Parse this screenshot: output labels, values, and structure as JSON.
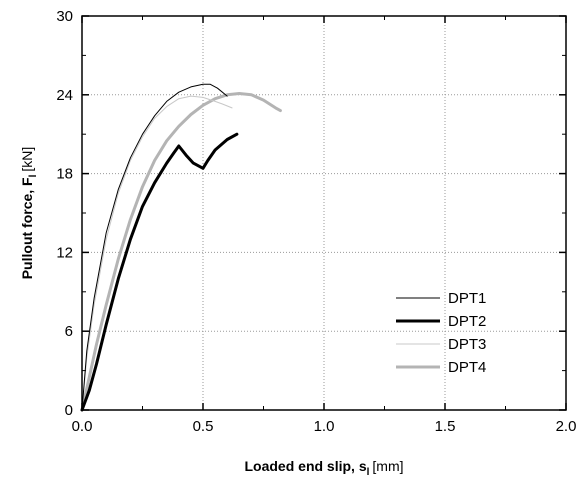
{
  "chart_data": {
    "type": "line",
    "xlabel": "Loaded end slip, s",
    "xlabel_sub": "l",
    "xlabel_unit": "[mm]",
    "ylabel": "Pullout force, F",
    "ylabel_sub": "l",
    "ylabel_unit": "[kN]",
    "xlim": [
      0.0,
      2.0
    ],
    "ylim": [
      0,
      30
    ],
    "xticks": [
      "0.0",
      "0.5",
      "1.0",
      "1.5",
      "2.0"
    ],
    "yticks": [
      "0",
      "6",
      "12",
      "18",
      "24",
      "30"
    ],
    "xtick_values": [
      0.0,
      0.5,
      1.0,
      1.5,
      2.0
    ],
    "ytick_values": [
      0,
      6,
      12,
      18,
      24,
      30
    ],
    "grid": true,
    "legend_position": "lower-right",
    "series": [
      {
        "name": "DPT1",
        "color": "#000000",
        "style": "thin",
        "x": [
          0,
          0.02,
          0.05,
          0.1,
          0.15,
          0.2,
          0.25,
          0.3,
          0.35,
          0.4,
          0.45,
          0.5,
          0.53,
          0.56,
          0.6
        ],
        "y": [
          0,
          4.5,
          8.5,
          13.5,
          16.8,
          19.2,
          21.0,
          22.4,
          23.5,
          24.2,
          24.6,
          24.8,
          24.8,
          24.5,
          23.9
        ]
      },
      {
        "name": "DPT2",
        "color": "#000000",
        "style": "thick",
        "x": [
          0,
          0.03,
          0.06,
          0.1,
          0.15,
          0.2,
          0.25,
          0.3,
          0.35,
          0.38,
          0.4,
          0.43,
          0.46,
          0.5,
          0.52,
          0.55,
          0.6,
          0.64
        ],
        "y": [
          0,
          1.5,
          3.5,
          6.5,
          10.0,
          13.0,
          15.5,
          17.3,
          18.8,
          19.6,
          20.1,
          19.4,
          18.8,
          18.4,
          19.0,
          19.8,
          20.6,
          21.0
        ]
      },
      {
        "name": "DPT3",
        "color": "#c8c8c8",
        "style": "thin",
        "x": [
          0,
          0.02,
          0.05,
          0.1,
          0.15,
          0.2,
          0.25,
          0.3,
          0.35,
          0.4,
          0.45,
          0.5,
          0.55,
          0.58,
          0.62
        ],
        "y": [
          0,
          4.0,
          8.0,
          13.0,
          16.5,
          19.0,
          20.8,
          22.2,
          23.1,
          23.7,
          23.9,
          23.8,
          23.5,
          23.3,
          23.0
        ]
      },
      {
        "name": "DPT4",
        "color": "#b4b4b4",
        "style": "thick",
        "x": [
          0,
          0.03,
          0.06,
          0.1,
          0.15,
          0.2,
          0.25,
          0.3,
          0.35,
          0.4,
          0.45,
          0.5,
          0.55,
          0.6,
          0.65,
          0.7,
          0.75,
          0.8,
          0.82
        ],
        "y": [
          0,
          2.5,
          5.0,
          8.0,
          11.5,
          14.5,
          17.0,
          19.0,
          20.5,
          21.6,
          22.5,
          23.2,
          23.7,
          24.0,
          24.1,
          24.0,
          23.6,
          23.0,
          22.8
        ]
      }
    ]
  }
}
